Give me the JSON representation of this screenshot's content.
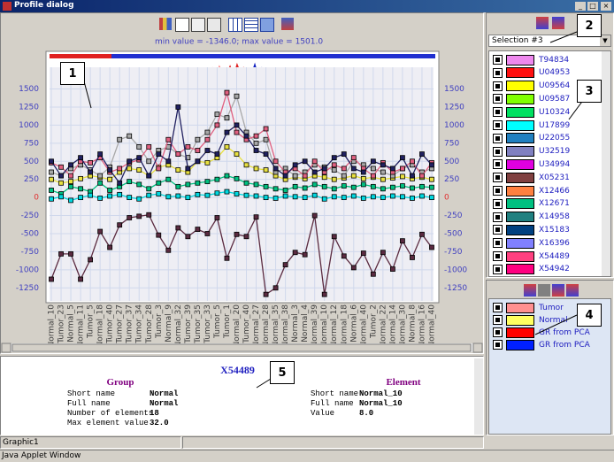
{
  "window": {
    "title": "Profile dialog"
  },
  "min_max_text": "min value = -1346.0; max value = 1501.0",
  "chart_data": {
    "type": "line",
    "categories": [
      "Normal_10",
      "Tumor_23",
      "Normal_5",
      "Normal_11",
      "Tumor_5",
      "Normal_18",
      "Tumor_40",
      "Tumor_27",
      "Tumor_37",
      "Tumor_34",
      "Tumor_28",
      "Tumor_3",
      "Normal_9",
      "Normal_32",
      "Tumor_39",
      "Tumor_35",
      "Tumor_33",
      "Tumor_5",
      "Tumor_1",
      "Normal_20",
      "Tumor_40",
      "Normal_27",
      "Normal_28",
      "Normal_35",
      "Normal_38",
      "Normal_3",
      "Normal_4",
      "Normal_39",
      "Normal_10",
      "Normal_12",
      "Normal_18",
      "Normal_6",
      "Normal_40",
      "Tumor_2",
      "Normal_22",
      "Normal_14",
      "Normal_30",
      "Normal_8",
      "Normal_16",
      "Normal_40"
    ],
    "ylim": [
      -1430,
      1800
    ],
    "yticks": [
      -1250,
      -1000,
      -750,
      -500,
      -250,
      0,
      250,
      500,
      750,
      1000,
      1250,
      1500
    ],
    "zero_label_color": "#e03030",
    "grid": true,
    "series": [
      {
        "color": "#00c080",
        "values": [
          100,
          50,
          150,
          120,
          80,
          200,
          100,
          150,
          220,
          180,
          120,
          200,
          250,
          150,
          180,
          200,
          220,
          250,
          300,
          260,
          200,
          180,
          150,
          120,
          100,
          150,
          130,
          180,
          150,
          120,
          160,
          140,
          180,
          150,
          120,
          140,
          160,
          130,
          150,
          140
        ]
      },
      {
        "color": "#00d8e0",
        "values": [
          -20,
          10,
          -40,
          0,
          30,
          -10,
          20,
          40,
          0,
          -20,
          30,
          50,
          10,
          20,
          0,
          40,
          30,
          60,
          80,
          50,
          30,
          20,
          0,
          -10,
          20,
          10,
          0,
          30,
          -20,
          10,
          0,
          20,
          -10,
          10,
          0,
          20,
          10,
          -10,
          20,
          0
        ]
      },
      {
        "color": "#e8e040",
        "values": [
          250,
          200,
          220,
          260,
          300,
          280,
          250,
          350,
          400,
          380,
          300,
          420,
          450,
          380,
          350,
          500,
          480,
          550,
          700,
          600,
          450,
          400,
          380,
          300,
          250,
          280,
          260,
          300,
          280,
          250,
          270,
          300,
          260,
          280,
          250,
          270,
          290,
          260,
          280,
          250
        ]
      },
      {
        "color": "#a8a8a8",
        "values": [
          350,
          300,
          400,
          450,
          380,
          300,
          420,
          800,
          850,
          700,
          500,
          650,
          700,
          600,
          550,
          800,
          900,
          1150,
          1100,
          1400,
          900,
          750,
          800,
          350,
          400,
          300,
          350,
          450,
          420,
          380,
          300,
          500,
          450,
          400,
          350,
          300,
          400,
          450,
          350,
          400
        ]
      },
      {
        "color": "#e06080",
        "values": [
          480,
          420,
          300,
          500,
          480,
          550,
          350,
          400,
          480,
          520,
          700,
          400,
          800,
          600,
          700,
          650,
          800,
          1000,
          1450,
          900,
          800,
          850,
          950,
          500,
          350,
          400,
          300,
          500,
          350,
          450,
          400,
          550,
          400,
          300,
          480,
          350,
          400,
          500,
          300,
          480
        ]
      },
      {
        "color": "#202060",
        "values": [
          500,
          300,
          450,
          550,
          350,
          600,
          380,
          200,
          500,
          550,
          300,
          600,
          500,
          1250,
          400,
          500,
          650,
          600,
          900,
          1000,
          850,
          650,
          600,
          400,
          300,
          450,
          500,
          350,
          400,
          550,
          600,
          400,
          350,
          500,
          450,
          400,
          550,
          300,
          600,
          450
        ]
      },
      {
        "color": "#5a2a40",
        "values": [
          -1130,
          -780,
          -780,
          -1130,
          -860,
          -470,
          -690,
          -380,
          -280,
          -260,
          -240,
          -520,
          -730,
          -420,
          -540,
          -440,
          -500,
          -280,
          -840,
          -510,
          -540,
          -270,
          -1340,
          -1250,
          -930,
          -760,
          -790,
          -250,
          -1340,
          -540,
          -810,
          -970,
          -770,
          -1060,
          -760,
          -990,
          -600,
          -830,
          -510,
          -690
        ]
      }
    ]
  },
  "selection": {
    "current": "Selection #3",
    "items": [
      {
        "name": "T94834",
        "color": "#ee88ee"
      },
      {
        "name": "U04953",
        "color": "#ff1010"
      },
      {
        "name": "U09564",
        "color": "#ffff00"
      },
      {
        "name": "U09587",
        "color": "#80ff00"
      },
      {
        "name": "U10324",
        "color": "#00e060"
      },
      {
        "name": "U17899",
        "color": "#00ffff"
      },
      {
        "name": "U22055",
        "color": "#2080c0"
      },
      {
        "name": "U32519",
        "color": "#8080c0"
      },
      {
        "name": "U34994",
        "color": "#e000e0"
      },
      {
        "name": "X05231",
        "color": "#804040"
      },
      {
        "name": "X12466",
        "color": "#ff8040"
      },
      {
        "name": "X12671",
        "color": "#00c080"
      },
      {
        "name": "X14958",
        "color": "#208080"
      },
      {
        "name": "X15183",
        "color": "#004080"
      },
      {
        "name": "X16396",
        "color": "#8080ff"
      },
      {
        "name": "X54489",
        "color": "#ff4080"
      },
      {
        "name": "X54942",
        "color": "#ff0080"
      }
    ]
  },
  "groups": [
    {
      "name": "Tumor",
      "color": "#ff9090"
    },
    {
      "name": "Normal",
      "color": "#ffff60"
    },
    {
      "name": "GR from PCA",
      "color": "#ff0000"
    },
    {
      "name": "GR from PCA",
      "color": "#0020ff"
    }
  ],
  "info": {
    "title": "X54489",
    "group": {
      "heading": "Group",
      "rows": [
        [
          "Short name",
          "Normal"
        ],
        [
          "Full name",
          "Normal"
        ],
        [
          "Number of elements",
          "18"
        ],
        [
          "Max element value",
          "32.0"
        ]
      ]
    },
    "element": {
      "heading": "Element",
      "rows": [
        [
          "Short name",
          "Normal_10"
        ],
        [
          "Full name",
          "Normal_10"
        ],
        [
          "Value",
          "8.0"
        ]
      ]
    }
  },
  "status": "Graphic1",
  "applet_status": "Java Applet Window",
  "callouts": [
    "1",
    "2",
    "3",
    "4",
    "5"
  ]
}
